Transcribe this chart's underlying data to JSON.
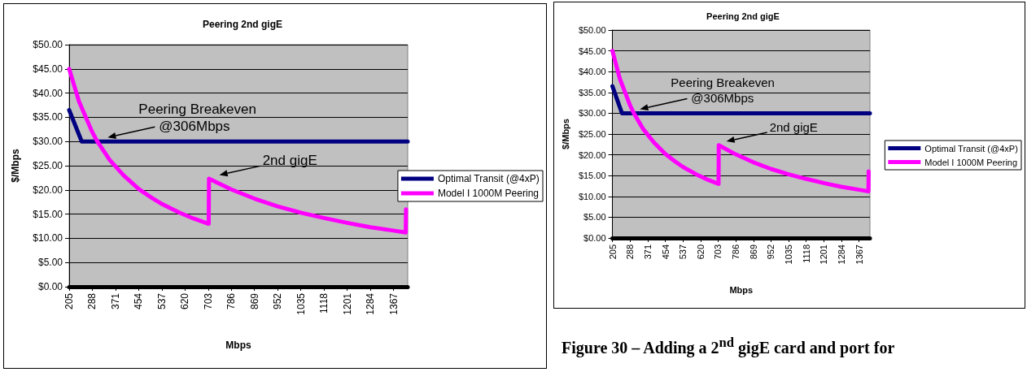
{
  "chart_data": [
    {
      "type": "line",
      "title": "Peering 2nd gigE",
      "xlabel": "Mbps",
      "ylabel": "$/Mbps",
      "xlim": [
        205,
        1418
      ],
      "xticks": [
        205,
        288,
        371,
        454,
        537,
        620,
        703,
        786,
        869,
        952,
        1035,
        1118,
        1201,
        1284,
        1367
      ],
      "ylim": [
        0,
        50
      ],
      "yticks": [
        {
          "value": 0,
          "label": "$0.00"
        },
        {
          "value": 5,
          "label": "$5.00"
        },
        {
          "value": 10,
          "label": "$10.00"
        },
        {
          "value": 15,
          "label": "$15.00"
        },
        {
          "value": 20,
          "label": "$20.00"
        },
        {
          "value": 25,
          "label": "$25.00"
        },
        {
          "value": 30,
          "label": "$30.00"
        },
        {
          "value": 35,
          "label": "$35.00"
        },
        {
          "value": 40,
          "label": "$40.00"
        },
        {
          "value": 45,
          "label": "$45.00"
        },
        {
          "value": 50,
          "label": "$50.00"
        }
      ],
      "grid": "y",
      "legend": "right",
      "marker": "none",
      "line_style": "solid",
      "series": [
        {
          "name": "Optimal Transit (@4xP)",
          "color": "#000080",
          "x": [
            205,
            250,
            1418
          ],
          "values": [
            36.5,
            30,
            30
          ]
        },
        {
          "name": "Model I 1000M Peering",
          "color": "#ff00ff",
          "x": [
            205,
            240,
            288,
            306,
            350,
            400,
            454,
            500,
            537,
            600,
            650,
            705,
            706,
            786,
            869,
            952,
            1035,
            1118,
            1201,
            1284,
            1367,
            1411,
            1412
          ],
          "values": [
            45,
            38.3,
            31.9,
            30,
            26.2,
            23,
            20.2,
            18.4,
            17.1,
            15.3,
            14.1,
            13,
            22.3,
            20.1,
            18.2,
            16.6,
            15.3,
            14.2,
            13.2,
            12.3,
            11.6,
            11.2,
            16
          ]
        }
      ],
      "annotations": [
        "Peering Breakeven\n@306Mbps",
        "2nd gigE"
      ]
    },
    {
      "type": "line",
      "title": "Peering 2nd gigE",
      "xlabel": "Mbps",
      "ylabel": "$/Mbps",
      "xlim": [
        205,
        1418
      ],
      "xticks": [
        205,
        288,
        371,
        454,
        537,
        620,
        703,
        786,
        869,
        952,
        1035,
        1118,
        1201,
        1284,
        1367
      ],
      "ylim": [
        0,
        50
      ],
      "yticks": [
        {
          "value": 0,
          "label": "$0.00"
        },
        {
          "value": 5,
          "label": "$5.00"
        },
        {
          "value": 10,
          "label": "$10.00"
        },
        {
          "value": 15,
          "label": "$15.00"
        },
        {
          "value": 20,
          "label": "$20.00"
        },
        {
          "value": 25,
          "label": "$25.00"
        },
        {
          "value": 30,
          "label": "$30.00"
        },
        {
          "value": 35,
          "label": "$35.00"
        },
        {
          "value": 40,
          "label": "$40.00"
        },
        {
          "value": 45,
          "label": "$45.00"
        },
        {
          "value": 50,
          "label": "$50.00"
        }
      ],
      "grid": "y",
      "legend": "right",
      "marker": "none",
      "line_style": "solid",
      "series": [
        {
          "name": "Optimal Transit (@4xP)",
          "color": "#000080",
          "x": [
            205,
            250,
            1418
          ],
          "values": [
            36.5,
            30,
            30
          ]
        },
        {
          "name": "Model I 1000M Peering",
          "color": "#ff00ff",
          "x": [
            205,
            240,
            288,
            306,
            350,
            400,
            454,
            500,
            537,
            600,
            650,
            705,
            706,
            786,
            869,
            952,
            1035,
            1118,
            1201,
            1284,
            1367,
            1411,
            1412
          ],
          "values": [
            45,
            38.3,
            31.9,
            30,
            26.2,
            23,
            20.2,
            18.4,
            17.1,
            15.3,
            14.1,
            13,
            22.3,
            20.1,
            18.2,
            16.6,
            15.3,
            14.2,
            13.2,
            12.3,
            11.6,
            11.2,
            16
          ]
        }
      ],
      "annotations": [
        "Peering Breakeven\n@306Mbps",
        "2nd gigE",
        "Figure 30 – Adding a 2$^{nd}$ gigE card and port for"
      ]
    }
  ]
}
